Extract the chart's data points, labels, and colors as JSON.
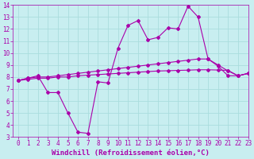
{
  "background_color": "#c8eef0",
  "grid_color": "#aadddd",
  "line_color": "#aa00aa",
  "xlim": [
    -0.5,
    23
  ],
  "ylim": [
    3,
    14
  ],
  "xticks": [
    0,
    1,
    2,
    3,
    4,
    5,
    6,
    7,
    8,
    9,
    10,
    11,
    12,
    13,
    14,
    15,
    16,
    17,
    18,
    19,
    20,
    21,
    22,
    23
  ],
  "yticks": [
    3,
    4,
    5,
    6,
    7,
    8,
    9,
    10,
    11,
    12,
    13,
    14
  ],
  "xlabel": "Windchill (Refroidissement éolien,°C)",
  "line1_x": [
    0,
    1,
    2,
    3,
    4,
    5,
    6,
    7,
    8,
    9,
    10,
    11,
    12,
    13,
    14,
    15,
    16,
    17,
    18,
    19,
    20,
    21,
    22,
    23
  ],
  "line1_y": [
    7.7,
    7.9,
    8.0,
    8.0,
    8.1,
    8.2,
    8.3,
    8.4,
    8.5,
    8.6,
    8.7,
    8.8,
    8.9,
    9.0,
    9.1,
    9.2,
    9.3,
    9.4,
    9.5,
    9.5,
    9.0,
    8.5,
    8.1,
    8.3
  ],
  "line2_x": [
    0,
    1,
    2,
    3,
    4,
    5,
    6,
    7,
    8,
    9,
    10,
    11,
    12,
    13,
    14,
    15,
    16,
    17,
    18,
    19,
    20,
    21,
    22,
    23
  ],
  "line2_y": [
    7.7,
    7.8,
    7.9,
    7.9,
    8.0,
    8.0,
    8.1,
    8.15,
    8.2,
    8.25,
    8.3,
    8.35,
    8.4,
    8.45,
    8.5,
    8.52,
    8.55,
    8.57,
    8.6,
    8.6,
    8.58,
    8.55,
    8.1,
    8.3
  ],
  "line3_x": [
    0,
    1,
    2,
    3,
    4,
    5,
    6,
    7,
    8,
    9,
    10,
    11,
    12,
    13,
    14,
    15,
    16,
    17,
    18,
    19,
    20,
    21,
    22,
    23
  ],
  "line3_y": [
    7.7,
    7.9,
    8.1,
    6.7,
    6.7,
    5.0,
    3.4,
    3.3,
    7.6,
    7.5,
    10.4,
    12.3,
    12.7,
    11.1,
    11.3,
    12.1,
    12.0,
    13.9,
    13.0,
    9.5,
    8.9,
    8.1,
    8.1,
    8.3
  ],
  "marker": "D",
  "markersize": 2.0,
  "linewidth": 0.8,
  "tick_fontsize": 5.5,
  "label_fontsize": 6.5,
  "label_fontweight": "bold"
}
